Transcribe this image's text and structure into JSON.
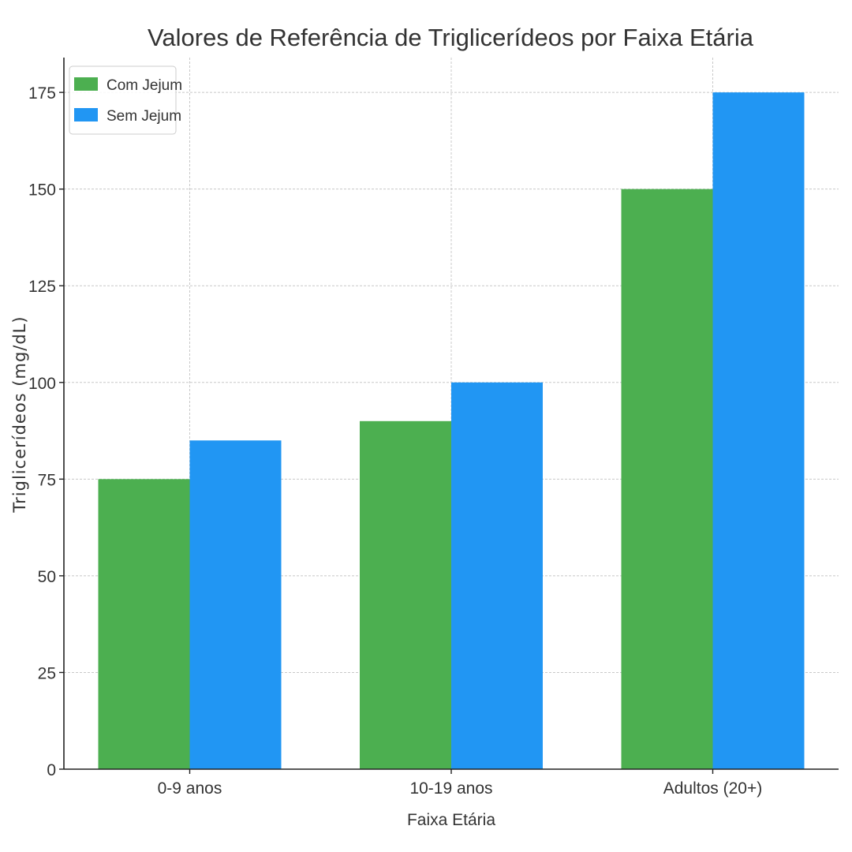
{
  "chart_data": {
    "type": "bar",
    "title": "Valores de Referência de Triglicerídeos por Faixa Etária",
    "xlabel": "Faixa Etária",
    "ylabel": "Triglicerídeos (mg/dL)",
    "categories": [
      "0-9 anos",
      "10-19 anos",
      "Adultos (20+)"
    ],
    "series": [
      {
        "name": "Com Jejum",
        "values": [
          75,
          90,
          150
        ],
        "color": "#4caf50"
      },
      {
        "name": "Sem Jejum",
        "values": [
          85,
          100,
          175
        ],
        "color": "#2196f3"
      }
    ],
    "yticks": [
      0,
      25,
      50,
      75,
      100,
      125,
      150,
      175
    ],
    "ylim": [
      0,
      184
    ],
    "grid": true,
    "legend_position": "top-left"
  }
}
